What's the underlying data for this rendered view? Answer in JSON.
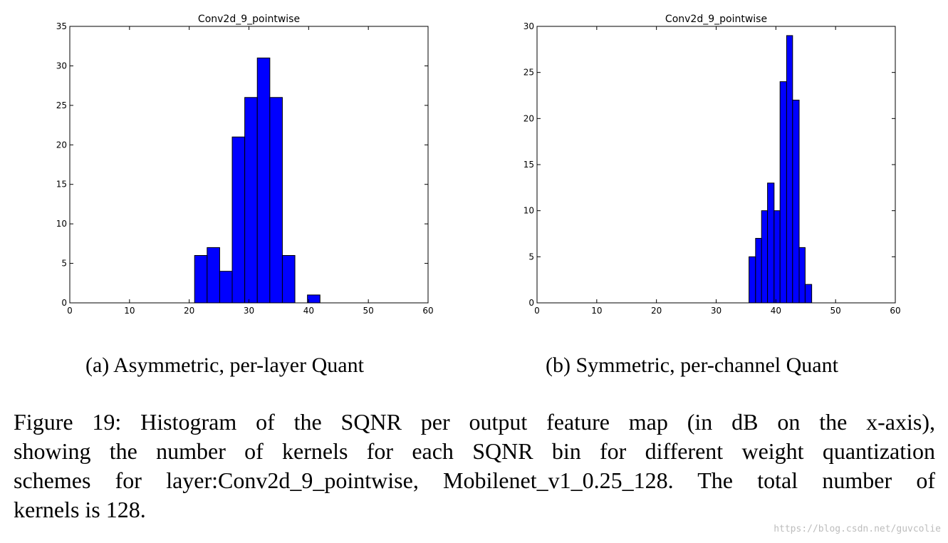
{
  "chart_data": [
    {
      "type": "bar",
      "title": "Conv2d_9_pointwise",
      "xlabel": "",
      "ylabel": "",
      "xlim": [
        0,
        60
      ],
      "ylim": [
        0,
        35
      ],
      "xticks": [
        0,
        10,
        20,
        30,
        40,
        50,
        60
      ],
      "yticks": [
        0,
        5,
        10,
        15,
        20,
        25,
        30,
        35
      ],
      "grid": false,
      "bar_color": "#0000ff",
      "bins": [
        {
          "x0": 20.9,
          "x1": 23.0,
          "value": 6
        },
        {
          "x0": 23.0,
          "x1": 25.1,
          "value": 7
        },
        {
          "x0": 25.1,
          "x1": 27.2,
          "value": 4
        },
        {
          "x0": 27.2,
          "x1": 29.3,
          "value": 21
        },
        {
          "x0": 29.3,
          "x1": 31.4,
          "value": 26
        },
        {
          "x0": 31.4,
          "x1": 33.5,
          "value": 31
        },
        {
          "x0": 33.5,
          "x1": 35.6,
          "value": 26
        },
        {
          "x0": 35.6,
          "x1": 37.7,
          "value": 6
        },
        {
          "x0": 39.8,
          "x1": 41.9,
          "value": 1
        }
      ]
    },
    {
      "type": "bar",
      "title": "Conv2d_9_pointwise",
      "xlabel": "",
      "ylabel": "",
      "xlim": [
        0,
        60
      ],
      "ylim": [
        0,
        30
      ],
      "xticks": [
        0,
        10,
        20,
        30,
        40,
        50,
        60
      ],
      "yticks": [
        0,
        5,
        10,
        15,
        20,
        25,
        30
      ],
      "grid": false,
      "bar_color": "#0000ff",
      "bins": [
        {
          "x0": 35.5,
          "x1": 36.6,
          "value": 5
        },
        {
          "x0": 36.6,
          "x1": 37.6,
          "value": 7
        },
        {
          "x0": 37.6,
          "x1": 38.6,
          "value": 10
        },
        {
          "x0": 38.6,
          "x1": 39.7,
          "value": 13
        },
        {
          "x0": 39.7,
          "x1": 40.7,
          "value": 10
        },
        {
          "x0": 40.7,
          "x1": 41.8,
          "value": 24
        },
        {
          "x0": 41.8,
          "x1": 42.8,
          "value": 29
        },
        {
          "x0": 42.8,
          "x1": 43.9,
          "value": 22
        },
        {
          "x0": 43.9,
          "x1": 44.9,
          "value": 6
        },
        {
          "x0": 44.9,
          "x1": 46.0,
          "value": 2
        }
      ]
    }
  ],
  "subcaptions": {
    "a": "(a) Asymmetric, per-layer Quant",
    "b": "(b) Symmetric, per-channel Quant"
  },
  "caption": {
    "line1": "Figure 19:  Histogram of the SQNR per output feature map (in dB on the x-axis),",
    "line2": "showing the number of kernels for each SQNR bin for different weight quantization",
    "line3": "schemes for layer:Conv2d_9_pointwise, Mobilenet_v1_0.25_128.  The total number of",
    "line4": "kernels is 128."
  },
  "watermark": "https://blog.csdn.net/guvcolie"
}
